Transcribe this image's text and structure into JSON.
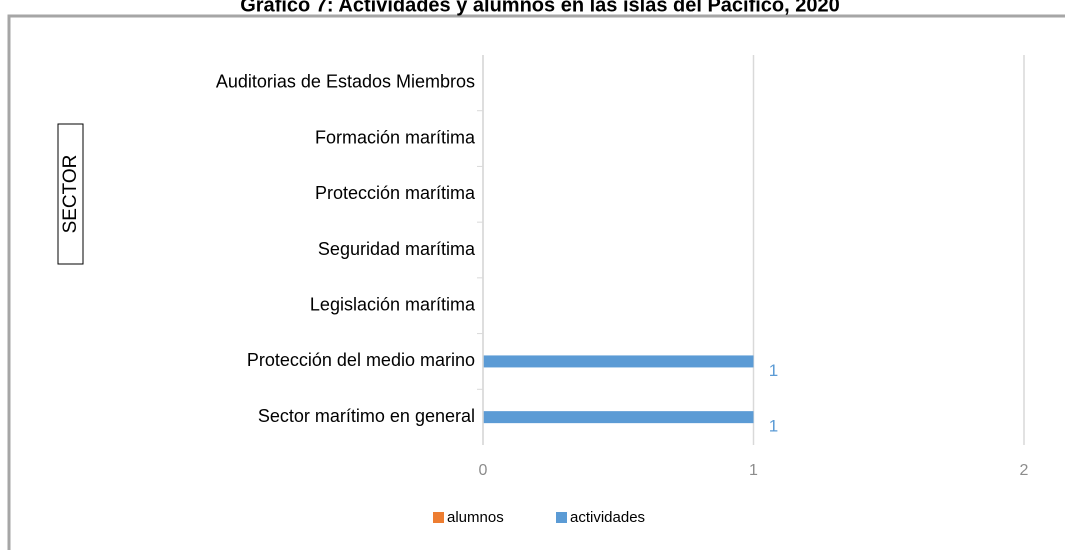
{
  "chart_data": {
    "type": "hbar",
    "title": "Gráfico 7: Actividades  y alumnos en las islas del Pacífico, 2020",
    "ylabel": "SECTOR",
    "categories": [
      "Auditorias de Estados Miembros",
      "Formación marítima",
      "Protección marítima",
      "Seguridad marítima",
      "Legislación marítima",
      "Protección del medio marino",
      "Sector marítimo en general"
    ],
    "series": [
      {
        "name": "alumnos",
        "color": "#ed7d31",
        "values": [
          0,
          0,
          0,
          0,
          0,
          0,
          0
        ]
      },
      {
        "name": "actividades",
        "color": "#5b9bd5",
        "values": [
          0,
          0,
          0,
          0,
          0,
          1,
          1
        ]
      }
    ],
    "xlim": [
      0,
      2
    ],
    "xticks": [
      0,
      1,
      2
    ],
    "grid": true,
    "legend": "bottom"
  }
}
